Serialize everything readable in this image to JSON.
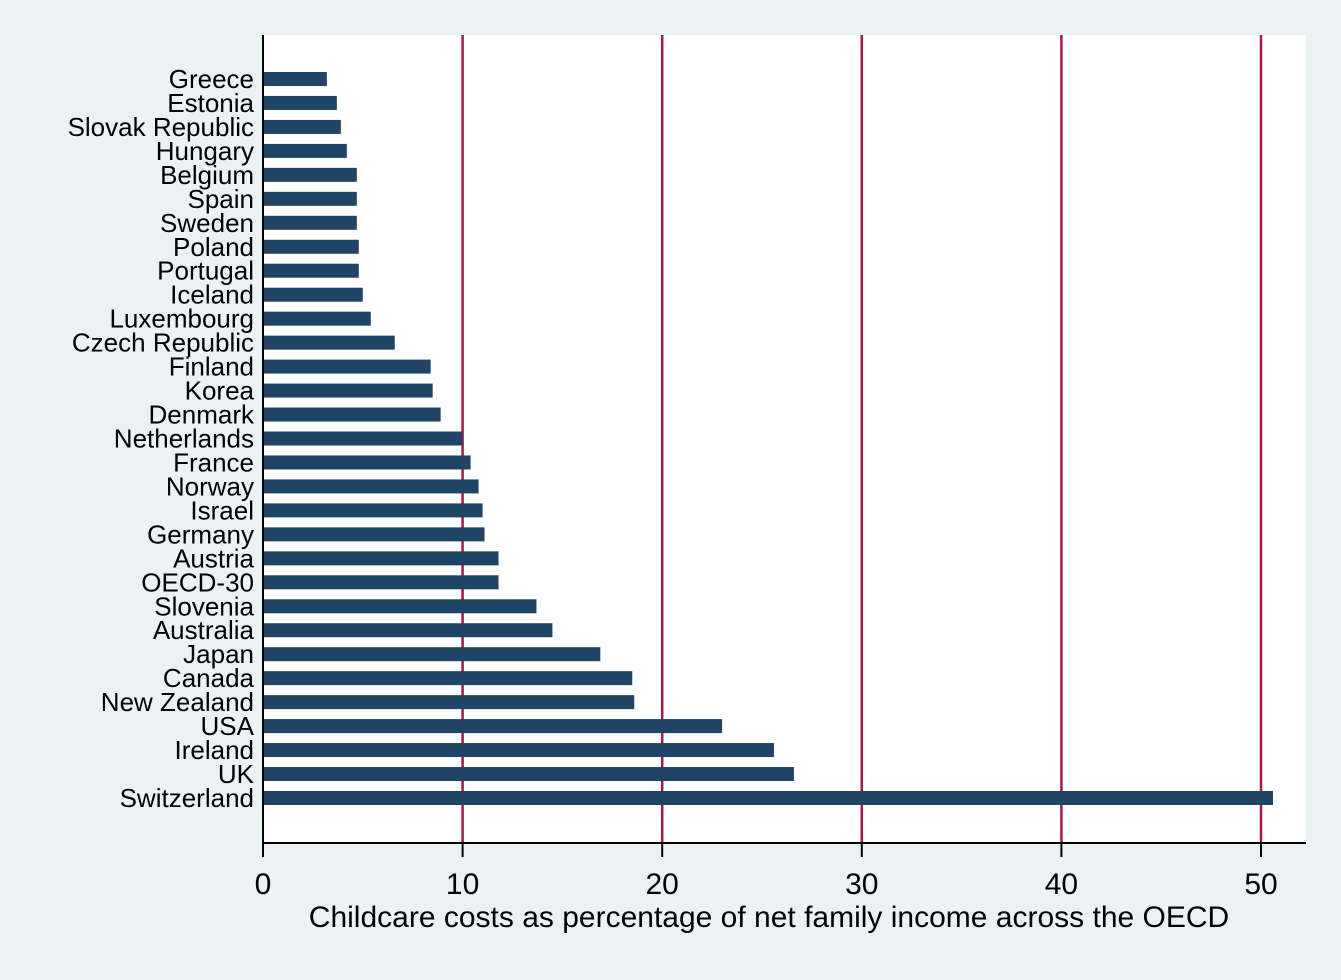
{
  "chart_data": {
    "type": "bar",
    "orientation": "horizontal",
    "title": "",
    "xlabel": "Childcare costs as percentage of net family income across the OECD",
    "ylabel": "",
    "xlim": [
      0,
      52.3
    ],
    "x_ticks": [
      0,
      10,
      20,
      30,
      40,
      50
    ],
    "grid": "vertical-major",
    "legend": "none",
    "categories": [
      "Greece",
      "Estonia",
      "Slovak Republic",
      "Hungary",
      "Belgium",
      "Spain",
      "Sweden",
      "Poland",
      "Portugal",
      "Iceland",
      "Luxembourg",
      "Czech Republic",
      "Finland",
      "Korea",
      "Denmark",
      "Netherlands",
      "France",
      "Norway",
      "Israel",
      "Germany",
      "Austria",
      "OECD-30",
      "Slovenia",
      "Australia",
      "Japan",
      "Canada",
      "New Zealand",
      "USA",
      "Ireland",
      "UK",
      "Switzerland"
    ],
    "values": [
      3.2,
      3.7,
      3.9,
      4.2,
      4.7,
      4.7,
      4.7,
      4.8,
      4.8,
      5.0,
      5.4,
      6.6,
      8.4,
      8.5,
      8.9,
      10.0,
      10.4,
      10.8,
      11.0,
      11.1,
      11.8,
      11.8,
      13.7,
      14.5,
      16.9,
      18.5,
      18.6,
      23.0,
      25.6,
      26.6,
      50.6
    ],
    "colors": {
      "bar": "#1f4466",
      "grid": "#a8174a",
      "plot_background": "#ffffff",
      "page_background": "#eaf2f3",
      "axis": "#000000",
      "text": "#000000"
    }
  }
}
